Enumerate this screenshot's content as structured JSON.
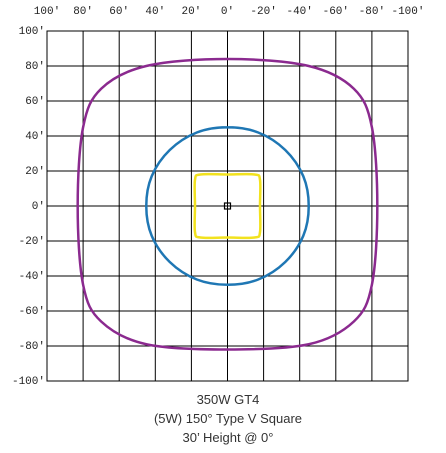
{
  "chart_data": {
    "type": "isoline",
    "title": [
      "350W GT4",
      "(5W) 150° Type V Square",
      "30’ Height @ 0°"
    ],
    "xlim": [
      100,
      -100
    ],
    "ylim": [
      -100,
      100
    ],
    "xticks": [
      {
        "value": 100,
        "label": "100'"
      },
      {
        "value": 80,
        "label": "80'"
      },
      {
        "value": 60,
        "label": "60'"
      },
      {
        "value": 40,
        "label": "40'"
      },
      {
        "value": 20,
        "label": "20'"
      },
      {
        "value": 0,
        "label": "0'"
      },
      {
        "value": -20,
        "label": "-20'"
      },
      {
        "value": -40,
        "label": "-40'"
      },
      {
        "value": -60,
        "label": "-60'"
      },
      {
        "value": -80,
        "label": "-80'"
      },
      {
        "value": -100,
        "label": "-100'"
      }
    ],
    "yticks": [
      {
        "value": 100,
        "label": "100'"
      },
      {
        "value": 80,
        "label": "80'"
      },
      {
        "value": 60,
        "label": "60'"
      },
      {
        "value": 40,
        "label": "40'"
      },
      {
        "value": 20,
        "label": "20'"
      },
      {
        "value": 0,
        "label": "0'"
      },
      {
        "value": -20,
        "label": "-20'"
      },
      {
        "value": -40,
        "label": "-40'"
      },
      {
        "value": -60,
        "label": "-60'"
      },
      {
        "value": -80,
        "label": "-80'"
      },
      {
        "value": -100,
        "label": "-100'"
      }
    ],
    "grid": true,
    "series": [
      {
        "color": "#8b2a8f",
        "x": [
          0,
          45,
          70,
          80,
          83,
          80,
          70,
          45,
          0,
          -45,
          -70,
          -80,
          -83,
          -80,
          -70,
          -45
        ],
        "values": [
          84,
          80,
          67,
          45,
          0,
          -45,
          -66,
          -79,
          -82,
          -79,
          -66,
          -45,
          0,
          45,
          67,
          80
        ]
      },
      {
        "color": "#1f77b4",
        "x": [
          0,
          17,
          32,
          42,
          45,
          42,
          32,
          17,
          0,
          -17,
          -32,
          -42,
          -45,
          -42,
          -32,
          -17
        ],
        "values": [
          45,
          42,
          32,
          17,
          0,
          -17,
          -32,
          -42,
          -45,
          -42,
          -32,
          -17,
          0,
          17,
          32,
          42
        ]
      },
      {
        "color": "#f2e21e",
        "x": [
          0,
          15,
          18,
          18,
          18,
          15,
          0,
          -15,
          -18,
          -18,
          -18,
          -15
        ],
        "values": [
          18,
          18,
          15,
          0,
          -15,
          -18,
          -18,
          -18,
          -15,
          0,
          15,
          18
        ]
      }
    ]
  }
}
